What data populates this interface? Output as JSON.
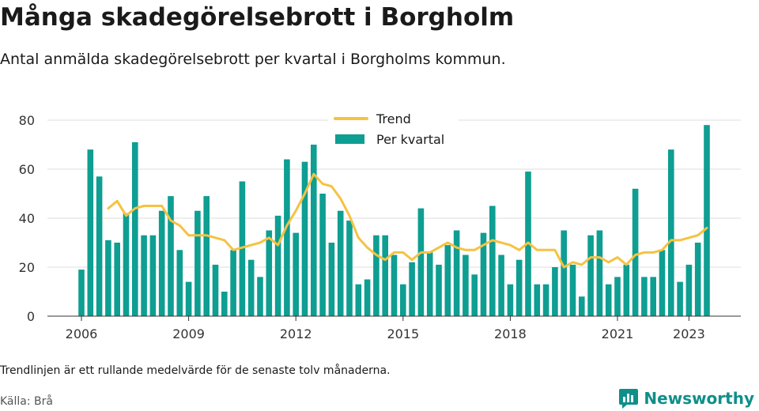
{
  "title": "Många skadegörelsebrott i Borgholm",
  "subtitle": "Antal anmälda skadegörelsebrott per kvartal i Borgholms kommun.",
  "note": "Trendlinjen är ett rullande medelvärde för de senaste tolv månaderna.",
  "source": "Källa: Brå",
  "brand": "Newsworthy",
  "colors": {
    "bar": "#0e9e92",
    "trend": "#f5c242",
    "grid": "#dddddd",
    "axis": "#333333",
    "brand": "#0f8f8a"
  },
  "chart_data": {
    "type": "bar",
    "grid": true,
    "legend_position": "top-center",
    "ylim": [
      0,
      80
    ],
    "yticks": [
      0,
      20,
      40,
      60,
      80
    ],
    "xticks": [
      "2006",
      "2009",
      "2012",
      "2015",
      "2018",
      "2021",
      "2023"
    ],
    "xtick_index": [
      0,
      12,
      24,
      36,
      48,
      60,
      68
    ],
    "series": [
      {
        "name": "Per kvartal",
        "values": [
          19,
          68,
          57,
          31,
          30,
          42,
          71,
          33,
          33,
          43,
          49,
          27,
          14,
          43,
          49,
          21,
          10,
          27,
          55,
          23,
          16,
          35,
          41,
          64,
          34,
          63,
          70,
          50,
          30,
          43,
          39,
          13,
          15,
          33,
          33,
          25,
          13,
          22,
          44,
          26,
          21,
          29,
          35,
          25,
          17,
          34,
          45,
          25,
          13,
          23,
          59,
          13,
          13,
          20,
          35,
          21,
          8,
          33,
          35,
          13,
          16,
          21,
          52,
          16,
          16,
          27,
          68,
          14,
          21,
          30,
          78
        ]
      },
      {
        "name": "Trend",
        "values": [
          null,
          null,
          null,
          44,
          47,
          41,
          44,
          45,
          45,
          45,
          39,
          37,
          33,
          33,
          33,
          32,
          31,
          27,
          28,
          29,
          30,
          32,
          29,
          37,
          43,
          50,
          58,
          54,
          53,
          48,
          41,
          32,
          28,
          25,
          23,
          26,
          26,
          23,
          26,
          26,
          28,
          30,
          28,
          27,
          27,
          29,
          31,
          30,
          29,
          27,
          30,
          27,
          27,
          27,
          20,
          22,
          21,
          24,
          24,
          22,
          24,
          21,
          25,
          26,
          26,
          27,
          31,
          31,
          32,
          33,
          36
        ]
      }
    ]
  }
}
